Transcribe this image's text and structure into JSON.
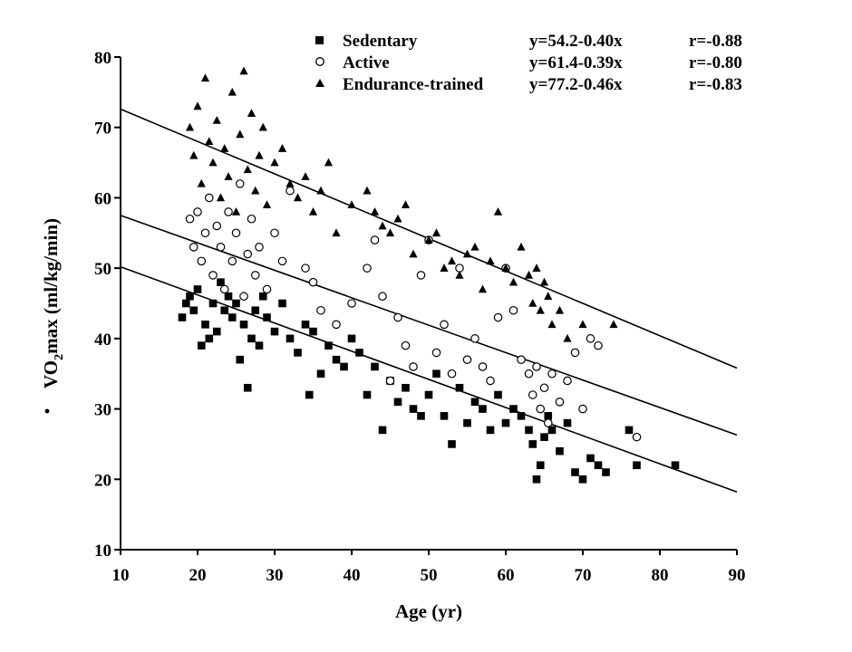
{
  "chart_data": {
    "type": "scatter",
    "title": "",
    "xlabel": "Age (yr)",
    "ylabel": "VO2max (ml/kg/min)",
    "ylabel_parts": {
      "main": "VO",
      "sub": "2",
      "rest": "max (ml/kg/min)"
    },
    "xlim": [
      10,
      90
    ],
    "ylim": [
      10,
      80
    ],
    "xticks": [
      10,
      20,
      30,
      40,
      50,
      60,
      70,
      80,
      90
    ],
    "yticks": [
      10,
      20,
      30,
      40,
      50,
      60,
      70,
      80
    ],
    "grid": false,
    "legend_position": "top-right",
    "series": [
      {
        "name": "Sedentary",
        "marker": "square-filled",
        "equation": "y=54.2-0.40x",
        "r": "r=-0.88",
        "intercept": 54.2,
        "slope": -0.4,
        "points": [
          [
            18,
            43
          ],
          [
            18.5,
            45
          ],
          [
            19,
            46
          ],
          [
            19.5,
            44
          ],
          [
            20,
            47
          ],
          [
            20.5,
            39
          ],
          [
            21,
            42
          ],
          [
            21.5,
            40
          ],
          [
            22,
            45
          ],
          [
            22.5,
            41
          ],
          [
            23,
            48
          ],
          [
            23.5,
            44
          ],
          [
            24,
            46
          ],
          [
            24.5,
            43
          ],
          [
            25,
            45
          ],
          [
            25.5,
            37
          ],
          [
            26,
            42
          ],
          [
            26.5,
            33
          ],
          [
            27,
            40
          ],
          [
            27.5,
            44
          ],
          [
            28,
            39
          ],
          [
            28.5,
            46
          ],
          [
            29,
            43
          ],
          [
            30,
            41
          ],
          [
            31,
            45
          ],
          [
            32,
            40
          ],
          [
            33,
            38
          ],
          [
            34,
            42
          ],
          [
            34.5,
            32
          ],
          [
            35,
            41
          ],
          [
            36,
            35
          ],
          [
            37,
            39
          ],
          [
            38,
            37
          ],
          [
            39,
            36
          ],
          [
            40,
            40
          ],
          [
            41,
            38
          ],
          [
            42,
            32
          ],
          [
            43,
            36
          ],
          [
            44,
            27
          ],
          [
            45,
            34
          ],
          [
            46,
            31
          ],
          [
            47,
            33
          ],
          [
            48,
            30
          ],
          [
            49,
            29
          ],
          [
            50,
            32
          ],
          [
            51,
            35
          ],
          [
            52,
            29
          ],
          [
            53,
            25
          ],
          [
            54,
            33
          ],
          [
            55,
            28
          ],
          [
            56,
            31
          ],
          [
            57,
            30
          ],
          [
            58,
            27
          ],
          [
            59,
            32
          ],
          [
            60,
            28
          ],
          [
            61,
            30
          ],
          [
            62,
            29
          ],
          [
            63,
            27
          ],
          [
            63.5,
            25
          ],
          [
            64,
            20
          ],
          [
            64.5,
            22
          ],
          [
            65,
            26
          ],
          [
            65.5,
            29
          ],
          [
            66,
            27
          ],
          [
            67,
            24
          ],
          [
            68,
            28
          ],
          [
            69,
            21
          ],
          [
            70,
            20
          ],
          [
            71,
            23
          ],
          [
            72,
            22
          ],
          [
            73,
            21
          ],
          [
            76,
            27
          ],
          [
            77,
            22
          ],
          [
            82,
            22
          ]
        ]
      },
      {
        "name": "Active",
        "marker": "circle-open",
        "equation": "y=61.4-0.39x",
        "r": "r=-0.80",
        "intercept": 61.4,
        "slope": -0.39,
        "points": [
          [
            19,
            57
          ],
          [
            19.5,
            53
          ],
          [
            20,
            58
          ],
          [
            20.5,
            51
          ],
          [
            21,
            55
          ],
          [
            21.5,
            60
          ],
          [
            22,
            49
          ],
          [
            22.5,
            56
          ],
          [
            23,
            53
          ],
          [
            23.5,
            47
          ],
          [
            24,
            58
          ],
          [
            24.5,
            51
          ],
          [
            25,
            55
          ],
          [
            25.5,
            62
          ],
          [
            26,
            46
          ],
          [
            26.5,
            52
          ],
          [
            27,
            57
          ],
          [
            27.5,
            49
          ],
          [
            28,
            53
          ],
          [
            29,
            47
          ],
          [
            30,
            55
          ],
          [
            31,
            51
          ],
          [
            32,
            61
          ],
          [
            34,
            50
          ],
          [
            35,
            48
          ],
          [
            36,
            44
          ],
          [
            38,
            42
          ],
          [
            40,
            45
          ],
          [
            42,
            50
          ],
          [
            43,
            54
          ],
          [
            44,
            46
          ],
          [
            45,
            34
          ],
          [
            46,
            43
          ],
          [
            47,
            39
          ],
          [
            48,
            36
          ],
          [
            49,
            49
          ],
          [
            50,
            54
          ],
          [
            51,
            38
          ],
          [
            52,
            42
          ],
          [
            53,
            35
          ],
          [
            54,
            50
          ],
          [
            55,
            37
          ],
          [
            56,
            40
          ],
          [
            57,
            36
          ],
          [
            58,
            34
          ],
          [
            59,
            43
          ],
          [
            60,
            50
          ],
          [
            61,
            44
          ],
          [
            62,
            37
          ],
          [
            63,
            35
          ],
          [
            63.5,
            32
          ],
          [
            64,
            36
          ],
          [
            64.5,
            30
          ],
          [
            65,
            33
          ],
          [
            65.5,
            28
          ],
          [
            66,
            35
          ],
          [
            67,
            31
          ],
          [
            68,
            34
          ],
          [
            69,
            38
          ],
          [
            70,
            30
          ],
          [
            71,
            40
          ],
          [
            72,
            39
          ],
          [
            77,
            26
          ]
        ]
      },
      {
        "name": "Endurance-trained",
        "marker": "triangle-filled",
        "equation": "y=77.2-0.46x",
        "r": "r=-0.83",
        "intercept": 77.2,
        "slope": -0.46,
        "points": [
          [
            19,
            70
          ],
          [
            19.5,
            66
          ],
          [
            20,
            73
          ],
          [
            20.5,
            62
          ],
          [
            21,
            77
          ],
          [
            21.5,
            68
          ],
          [
            22,
            65
          ],
          [
            22.5,
            71
          ],
          [
            23,
            60
          ],
          [
            23.5,
            67
          ],
          [
            24,
            63
          ],
          [
            24.5,
            75
          ],
          [
            25,
            58
          ],
          [
            25.5,
            69
          ],
          [
            26,
            78
          ],
          [
            26.5,
            64
          ],
          [
            27,
            72
          ],
          [
            27.5,
            61
          ],
          [
            28,
            66
          ],
          [
            28.5,
            70
          ],
          [
            29,
            59
          ],
          [
            30,
            65
          ],
          [
            31,
            67
          ],
          [
            32,
            62
          ],
          [
            33,
            60
          ],
          [
            34,
            63
          ],
          [
            35,
            58
          ],
          [
            36,
            61
          ],
          [
            37,
            65
          ],
          [
            38,
            55
          ],
          [
            40,
            59
          ],
          [
            42,
            61
          ],
          [
            43,
            58
          ],
          [
            44,
            56
          ],
          [
            45,
            55
          ],
          [
            46,
            57
          ],
          [
            47,
            59
          ],
          [
            48,
            52
          ],
          [
            50,
            54
          ],
          [
            51,
            55
          ],
          [
            52,
            50
          ],
          [
            53,
            51
          ],
          [
            54,
            49
          ],
          [
            55,
            52
          ],
          [
            56,
            53
          ],
          [
            57,
            47
          ],
          [
            58,
            51
          ],
          [
            59,
            58
          ],
          [
            60,
            50
          ],
          [
            61,
            48
          ],
          [
            62,
            53
          ],
          [
            63,
            49
          ],
          [
            63.5,
            45
          ],
          [
            64,
            50
          ],
          [
            64.5,
            44
          ],
          [
            65,
            48
          ],
          [
            65.5,
            46
          ],
          [
            66,
            42
          ],
          [
            67,
            44
          ],
          [
            68,
            40
          ],
          [
            70,
            42
          ],
          [
            74,
            42
          ]
        ]
      }
    ]
  }
}
